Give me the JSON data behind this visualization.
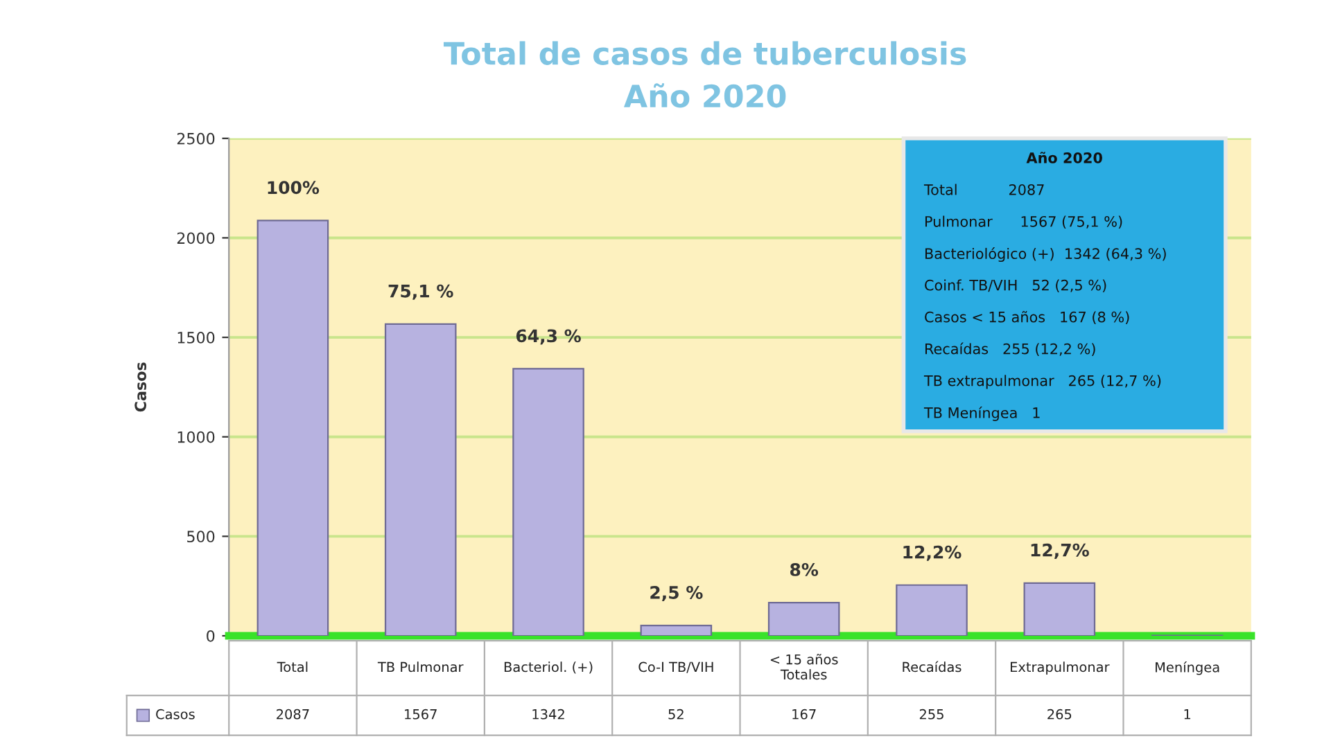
{
  "chart_data": {
    "type": "bar",
    "title": "Total de casos de tuberculosis",
    "subtitle": "Año 2020",
    "ylabel": "Casos",
    "categories": [
      "Total",
      "TB Pulmonar",
      "Bacteriol. (+)",
      "Co-I TB/VIH",
      "< 15 años\nTotales",
      "Recaídas",
      "Extrapulmonar",
      "Meníngea"
    ],
    "series": [
      {
        "name": "Casos",
        "color": "#b7b2e0",
        "values": [
          2087,
          1567,
          1342,
          52,
          167,
          255,
          265,
          1
        ]
      }
    ],
    "data_labels": true,
    "ylim": [
      0,
      2500
    ],
    "yticks": [
      0,
      500,
      1000,
      1500,
      2000,
      2500
    ],
    "grid": "y",
    "legend": "bottom",
    "annotations": [
      "Año 2020",
      "Total           2087",
      "Pulmonar      1567 (75,1 %)",
      "Bacteriológico (+)  1342 (64,3 %)",
      "Coinf. TB/VIH   52 (2,5 %)",
      "Casos < 15 años   167 (8 %)",
      "Recaídas   255 (12,2 %)",
      "TB extrapulmonar   265 (12,7 %)",
      "TB Meníngea   1",
      {
        "text": "100%",
        "x": "Total",
        "y": 2087
      },
      {
        "text": "75,1 %",
        "x": "TB Pulmonar",
        "y": 1567
      },
      {
        "text": "64,3 %",
        "x": "Bacteriol. (+)",
        "y": 1342
      },
      {
        "text": "2,5 %",
        "x": "Co-I TB/VIH",
        "y": 52
      },
      {
        "text": "8%",
        "x": "< 15 años\nTotales",
        "y": 167
      },
      {
        "text": "12,2%",
        "x": "Recaídas",
        "y": 255
      },
      {
        "text": "12,7%",
        "x": "Extrapulmonar",
        "y": 265
      }
    ]
  }
}
